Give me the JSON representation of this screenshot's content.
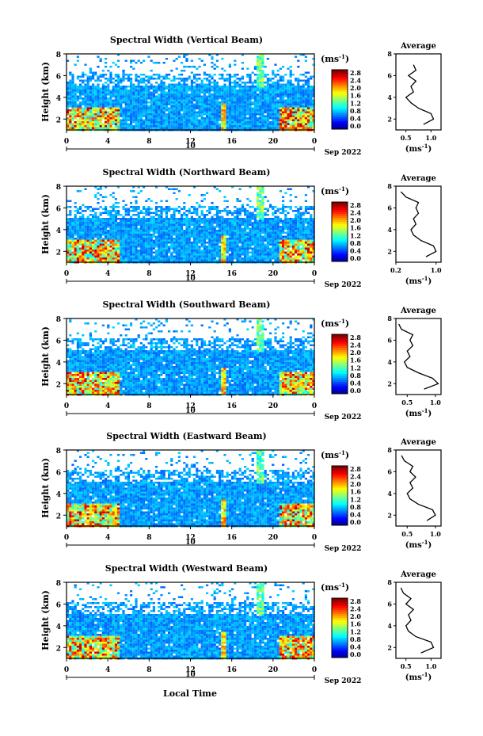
{
  "figure": {
    "panel_titles": [
      "Spectral Width (Vertical Beam)",
      "Spectral Width (Northward Beam)",
      "Spectral Width (Southward Beam)",
      "Spectral Width (Eastward Beam)",
      "Spectral Width (Westward Beam)"
    ],
    "y_label": "Height (km)",
    "x_label": "Local Time",
    "day_label": "10",
    "date_label": "Sep 2022",
    "colorbar_unit": "(ms",
    "colorbar_unit_sup": "-1",
    "colorbar_unit_close": ")",
    "average_title": "Average",
    "average_xlabel": "(ms",
    "average_xlabel_sup": "-1",
    "average_xlabel_close": ")"
  },
  "chart_data": [
    {
      "type": "heatmap",
      "title": "Spectral Width (Vertical Beam)",
      "ylabel": "Height (km)",
      "xlim": [
        0,
        24
      ],
      "ylim": [
        1,
        8
      ],
      "x_ticks": [
        "0",
        "4",
        "8",
        "12",
        "16",
        "20",
        "0"
      ],
      "y_ticks": [
        "2",
        "4",
        "6",
        "8"
      ],
      "colorbar": {
        "min": 0.0,
        "max": 2.8,
        "ticks": [
          "2.8",
          "2.4",
          "2.0",
          "1.6",
          "1.2",
          "0.8",
          "0.4",
          "0.0"
        ]
      },
      "average_profile": {
        "title": "Average",
        "xlim": [
          0.3,
          1.2
        ],
        "x_ticks": [
          "0.5",
          "1.0"
        ],
        "y_ticks": [
          "2",
          "4",
          "6",
          "8"
        ],
        "height_km": [
          1.5,
          2.0,
          2.5,
          3.0,
          3.5,
          4.0,
          4.5,
          5.0,
          5.5,
          6.0,
          6.5,
          7.0
        ],
        "width": [
          0.85,
          1.05,
          1.0,
          0.75,
          0.6,
          0.5,
          0.65,
          0.6,
          0.7,
          0.55,
          0.7,
          0.65
        ]
      }
    },
    {
      "type": "heatmap",
      "title": "Spectral Width (Northward Beam)",
      "ylabel": "Height (km)",
      "xlim": [
        0,
        24
      ],
      "ylim": [
        1,
        8
      ],
      "x_ticks": [
        "0",
        "4",
        "8",
        "12",
        "16",
        "20",
        "0"
      ],
      "y_ticks": [
        "2",
        "4",
        "6",
        "8"
      ],
      "colorbar": {
        "min": 0.0,
        "max": 2.8,
        "ticks": [
          "2.8",
          "2.4",
          "2.0",
          "1.6",
          "1.2",
          "0.8",
          "0.4",
          "0.0"
        ]
      },
      "average_profile": {
        "title": "Average",
        "xlim": [
          0.2,
          1.1
        ],
        "x_ticks": [
          "0.2",
          "1.0"
        ],
        "y_ticks": [
          "2",
          "4",
          "6",
          "8"
        ],
        "height_km": [
          1.5,
          2.0,
          2.5,
          3.0,
          3.5,
          4.0,
          4.5,
          5.0,
          5.5,
          6.0,
          6.5,
          7.0,
          7.5
        ],
        "width": [
          0.8,
          1.0,
          0.95,
          0.7,
          0.55,
          0.5,
          0.6,
          0.55,
          0.65,
          0.6,
          0.65,
          0.4,
          0.3
        ]
      }
    },
    {
      "type": "heatmap",
      "title": "Spectral Width (Southward Beam)",
      "ylabel": "Height (km)",
      "xlim": [
        0,
        24
      ],
      "ylim": [
        1,
        8
      ],
      "x_ticks": [
        "0",
        "4",
        "8",
        "12",
        "16",
        "20",
        "0"
      ],
      "y_ticks": [
        "2",
        "4",
        "6",
        "8"
      ],
      "colorbar": {
        "min": 0.0,
        "max": 2.8,
        "ticks": [
          "2.8",
          "2.4",
          "2.0",
          "1.6",
          "1.2",
          "0.8",
          "0.4",
          "0.0"
        ]
      },
      "average_profile": {
        "title": "Average",
        "xlim": [
          0.3,
          1.1
        ],
        "x_ticks": [
          "0.5",
          "1.0"
        ],
        "y_ticks": [
          "2",
          "4",
          "6",
          "8"
        ],
        "height_km": [
          1.5,
          2.0,
          2.5,
          3.0,
          3.5,
          4.0,
          4.5,
          5.0,
          5.5,
          6.0,
          6.5,
          7.0,
          7.5
        ],
        "width": [
          0.8,
          1.05,
          0.95,
          0.7,
          0.5,
          0.45,
          0.55,
          0.5,
          0.6,
          0.55,
          0.6,
          0.4,
          0.35
        ]
      }
    },
    {
      "type": "heatmap",
      "title": "Spectral Width (Eastward Beam)",
      "ylabel": "Height (km)",
      "xlim": [
        0,
        24
      ],
      "ylim": [
        1,
        8
      ],
      "x_ticks": [
        "0",
        "4",
        "8",
        "12",
        "16",
        "20",
        "0"
      ],
      "y_ticks": [
        "2",
        "4",
        "6",
        "8"
      ],
      "colorbar": {
        "min": 0.0,
        "max": 2.8,
        "ticks": [
          "2.8",
          "2.4",
          "2.0",
          "1.6",
          "1.2",
          "0.8",
          "0.4",
          "0.0"
        ]
      },
      "average_profile": {
        "title": "Average",
        "xlim": [
          0.3,
          1.1
        ],
        "x_ticks": [
          "0.5",
          "1.0"
        ],
        "y_ticks": [
          "2",
          "4",
          "6",
          "8"
        ],
        "height_km": [
          1.5,
          2.0,
          2.5,
          3.0,
          3.5,
          4.0,
          4.5,
          5.0,
          5.5,
          6.0,
          6.5,
          7.0,
          7.5
        ],
        "width": [
          0.85,
          1.0,
          0.95,
          0.7,
          0.55,
          0.5,
          0.6,
          0.55,
          0.65,
          0.55,
          0.6,
          0.45,
          0.4
        ]
      }
    },
    {
      "type": "heatmap",
      "title": "Spectral Width (Westward Beam)",
      "ylabel": "Height (km)",
      "xlabel": "Local Time",
      "xlim": [
        0,
        24
      ],
      "ylim": [
        1,
        8
      ],
      "x_ticks": [
        "0",
        "4",
        "8",
        "12",
        "16",
        "20",
        "0"
      ],
      "y_ticks": [
        "2",
        "4",
        "6",
        "8"
      ],
      "colorbar": {
        "min": 0.0,
        "max": 2.8,
        "ticks": [
          "2.8",
          "2.4",
          "2.0",
          "1.6",
          "1.2",
          "0.8",
          "0.4",
          "0.0"
        ]
      },
      "average_profile": {
        "title": "Average",
        "xlim": [
          0.3,
          1.2
        ],
        "x_ticks": [
          "0.5",
          "1.0"
        ],
        "y_ticks": [
          "2",
          "4",
          "6",
          "8"
        ],
        "height_km": [
          1.5,
          2.0,
          2.5,
          3.0,
          3.5,
          4.0,
          4.5,
          5.0,
          5.5,
          6.0,
          6.5,
          7.0,
          7.5
        ],
        "width": [
          0.8,
          1.05,
          1.0,
          0.7,
          0.55,
          0.5,
          0.6,
          0.55,
          0.65,
          0.5,
          0.6,
          0.45,
          0.4
        ]
      }
    }
  ]
}
